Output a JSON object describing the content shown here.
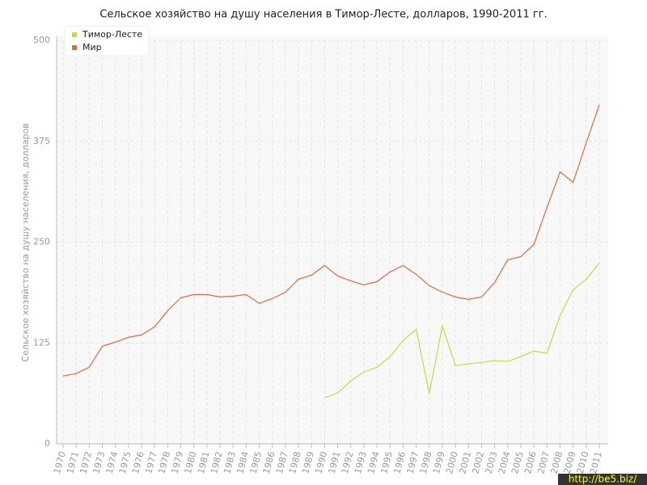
{
  "chart_data": {
    "type": "line",
    "title": "Сельское хозяйство на душу населения в Тимор-Лесте, долларов, 1990-2011 гг.",
    "y_label": "Сельское хозяйство на душу населения, долларов",
    "categories": [
      "1970",
      "1971",
      "1972",
      "1973",
      "1974",
      "1975",
      "1976",
      "1977",
      "1978",
      "1979",
      "1980",
      "1981",
      "1982",
      "1983",
      "1984",
      "1985",
      "1986",
      "1987",
      "1988",
      "1989",
      "1990",
      "1991",
      "1992",
      "1993",
      "1994",
      "1995",
      "1996",
      "1997",
      "1998",
      "1999",
      "2000",
      "2001",
      "2002",
      "2003",
      "2004",
      "2005",
      "2006",
      "2007",
      "2008",
      "2009",
      "2010",
      "2011"
    ],
    "series": [
      {
        "name": "Тимор-Лесте",
        "color": "#c5dc3c",
        "values": [
          null,
          null,
          null,
          null,
          null,
          null,
          null,
          null,
          null,
          null,
          null,
          null,
          null,
          null,
          null,
          null,
          null,
          null,
          null,
          null,
          57,
          63,
          78,
          89,
          95,
          108,
          128,
          142,
          62,
          146,
          97,
          99,
          101,
          103,
          102,
          108,
          115,
          112,
          159,
          191,
          204,
          224
        ]
      },
      {
        "name": "Мир",
        "color": "#e8683c",
        "values": [
          84,
          87,
          95,
          121,
          126,
          132,
          135,
          145,
          165,
          181,
          185,
          185,
          182,
          183,
          185,
          174,
          180,
          188,
          204,
          209,
          221,
          208,
          202,
          197,
          201,
          213,
          221,
          210,
          196,
          188,
          182,
          179,
          182,
          200,
          228,
          232,
          247,
          293,
          337,
          324,
          373,
          420
        ]
      }
    ],
    "ylim": [
      0,
      500
    ],
    "yticks": [
      0,
      125,
      250,
      375,
      500
    ],
    "grid": true,
    "legend": "top-left",
    "watermark": "http://be5.biz/"
  }
}
